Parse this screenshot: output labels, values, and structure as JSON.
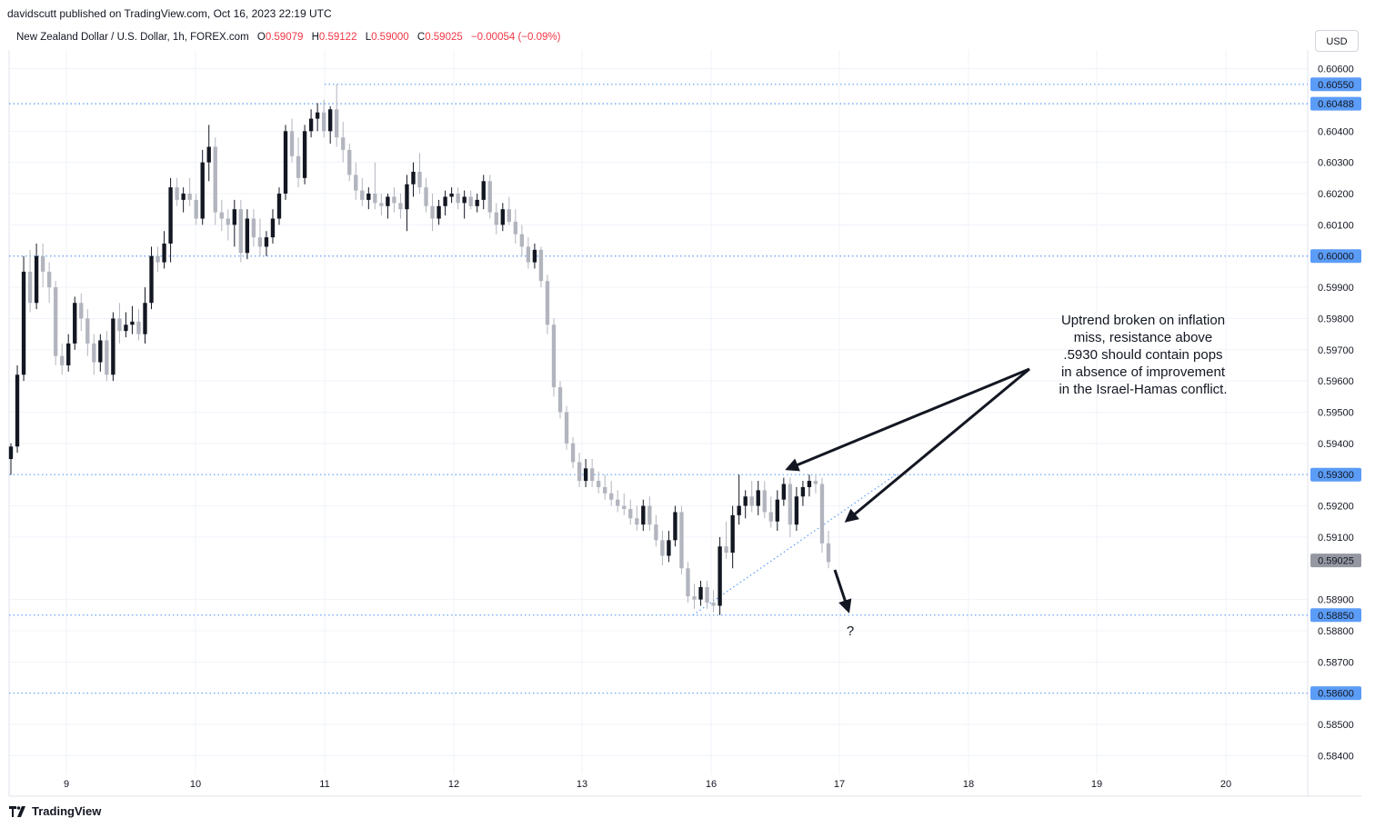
{
  "header": {
    "published": "davidscutt published on TradingView.com, Oct 16, 2023 22:19 UTC",
    "symbol": "New Zealand Dollar / U.S. Dollar, 1h, FOREX.com",
    "open_label": "O",
    "open": "0.59079",
    "high_label": "H",
    "high": "0.59122",
    "low_label": "L",
    "low": "0.59000",
    "close_label": "C",
    "close": "0.59025",
    "change": "−0.00054 (−0.09%)"
  },
  "currency_button": "USD",
  "brand": "TradingView",
  "chart_data": {
    "type": "candlestick",
    "title": "New Zealand Dollar / U.S. Dollar, 1h, FOREX.com",
    "y_axis_ticks": [
      "0.60600",
      "0.60400",
      "0.60300",
      "0.60200",
      "0.60100",
      "0.59900",
      "0.59800",
      "0.59700",
      "0.59600",
      "0.59500",
      "0.59400",
      "0.59200",
      "0.59100",
      "0.58900",
      "0.58800",
      "0.58700",
      "0.58500",
      "0.58400"
    ],
    "x_axis_ticks": [
      "9",
      "10",
      "11",
      "12",
      "13",
      "16",
      "17",
      "18",
      "19",
      "20"
    ],
    "ylim": [
      0.5834,
      0.6066
    ],
    "horizontal_levels": [
      {
        "label": "0.60550",
        "value": 0.6055,
        "color": "#2962ff"
      },
      {
        "label": "0.60488",
        "value": 0.60488,
        "color": "#2962ff"
      },
      {
        "label": "0.60000",
        "value": 0.6,
        "color": "#2962ff"
      },
      {
        "label": "0.59300",
        "value": 0.593,
        "color": "#2962ff"
      },
      {
        "label": "0.58850",
        "value": 0.5885,
        "color": "#2962ff"
      },
      {
        "label": "0.58600",
        "value": 0.586,
        "color": "#2962ff"
      }
    ],
    "last_price": {
      "label": "0.59025",
      "value": 0.59025
    },
    "annotation_text": [
      "Uptrend broken on inflation",
      "miss, resistance above",
      ".5930 should contain pops",
      "in absence of improvement",
      "in the Israel-Hamas conflict."
    ],
    "question_mark": "?",
    "candles": [
      [
        0.5935,
        0.594,
        0.593,
        0.5939
      ],
      [
        0.5939,
        0.5965,
        0.5937,
        0.5962
      ],
      [
        0.5962,
        0.6,
        0.596,
        0.5995
      ],
      [
        0.5995,
        0.6002,
        0.5982,
        0.5985
      ],
      [
        0.5985,
        0.6004,
        0.5983,
        0.6
      ],
      [
        0.6,
        0.6004,
        0.599,
        0.5995
      ],
      [
        0.5995,
        0.5998,
        0.5985,
        0.599
      ],
      [
        0.599,
        0.5992,
        0.5965,
        0.5968
      ],
      [
        0.5968,
        0.5972,
        0.5962,
        0.5965
      ],
      [
        0.5965,
        0.5975,
        0.5963,
        0.5972
      ],
      [
        0.5972,
        0.5987,
        0.597,
        0.5985
      ],
      [
        0.5985,
        0.5988,
        0.5976,
        0.598
      ],
      [
        0.598,
        0.5983,
        0.5968,
        0.5972
      ],
      [
        0.5972,
        0.5975,
        0.5962,
        0.5966
      ],
      [
        0.5966,
        0.5975,
        0.5963,
        0.5973
      ],
      [
        0.5973,
        0.5976,
        0.596,
        0.5962
      ],
      [
        0.5962,
        0.5982,
        0.596,
        0.598
      ],
      [
        0.598,
        0.5985,
        0.5972,
        0.5976
      ],
      [
        0.5976,
        0.5982,
        0.5974,
        0.5978
      ],
      [
        0.5978,
        0.5984,
        0.5975,
        0.5979
      ],
      [
        0.5979,
        0.5983,
        0.5973,
        0.5975
      ],
      [
        0.5975,
        0.599,
        0.5972,
        0.5985
      ],
      [
        0.5985,
        0.6003,
        0.5983,
        0.6
      ],
      [
        0.6,
        0.6003,
        0.5995,
        0.5998
      ],
      [
        0.5998,
        0.6008,
        0.5996,
        0.6004
      ],
      [
        0.6004,
        0.6025,
        0.5998,
        0.6022
      ],
      [
        0.6022,
        0.6025,
        0.6016,
        0.6018
      ],
      [
        0.6018,
        0.6022,
        0.6014,
        0.602
      ],
      [
        0.602,
        0.6025,
        0.6016,
        0.6018
      ],
      [
        0.6018,
        0.602,
        0.601,
        0.6012
      ],
      [
        0.6012,
        0.6034,
        0.601,
        0.603
      ],
      [
        0.603,
        0.6042,
        0.6024,
        0.6035
      ],
      [
        0.6035,
        0.6038,
        0.601,
        0.6014
      ],
      [
        0.6014,
        0.6018,
        0.6008,
        0.6012
      ],
      [
        0.6012,
        0.6015,
        0.6005,
        0.601
      ],
      [
        0.601,
        0.6018,
        0.6003,
        0.6015
      ],
      [
        0.6015,
        0.6018,
        0.5998,
        0.6001
      ],
      [
        0.6001,
        0.6015,
        0.5999,
        0.6012
      ],
      [
        0.6012,
        0.6015,
        0.6003,
        0.6006
      ],
      [
        0.6006,
        0.6012,
        0.6,
        0.6003
      ],
      [
        0.6003,
        0.6008,
        0.6,
        0.6006
      ],
      [
        0.6006,
        0.6015,
        0.6004,
        0.6012
      ],
      [
        0.6012,
        0.6022,
        0.601,
        0.602
      ],
      [
        0.602,
        0.6042,
        0.6018,
        0.604
      ],
      [
        0.604,
        0.6044,
        0.603,
        0.6032
      ],
      [
        0.6032,
        0.6038,
        0.6022,
        0.6025
      ],
      [
        0.6025,
        0.6042,
        0.6023,
        0.604
      ],
      [
        0.604,
        0.6047,
        0.6038,
        0.6044
      ],
      [
        0.6044,
        0.6049,
        0.604,
        0.6046
      ],
      [
        0.6046,
        0.605,
        0.6038,
        0.604
      ],
      [
        0.604,
        0.6048,
        0.6036,
        0.6047
      ],
      [
        0.6047,
        0.6055,
        0.6035,
        0.6038
      ],
      [
        0.6038,
        0.6043,
        0.603,
        0.6034
      ],
      [
        0.6034,
        0.6036,
        0.6024,
        0.6026
      ],
      [
        0.6026,
        0.603,
        0.6018,
        0.6021
      ],
      [
        0.6021,
        0.6025,
        0.6016,
        0.6018
      ],
      [
        0.6018,
        0.6022,
        0.6015,
        0.602
      ],
      [
        0.602,
        0.603,
        0.6015,
        0.6017
      ],
      [
        0.6017,
        0.602,
        0.6013,
        0.6016
      ],
      [
        0.6016,
        0.602,
        0.6012,
        0.6019
      ],
      [
        0.6019,
        0.6022,
        0.6014,
        0.6017
      ],
      [
        0.6017,
        0.602,
        0.6012,
        0.6015
      ],
      [
        0.6015,
        0.6026,
        0.6008,
        0.6023
      ],
      [
        0.6023,
        0.603,
        0.6019,
        0.6027
      ],
      [
        0.6027,
        0.6033,
        0.602,
        0.6022
      ],
      [
        0.6022,
        0.6025,
        0.6014,
        0.6016
      ],
      [
        0.6016,
        0.602,
        0.6008,
        0.6012
      ],
      [
        0.6012,
        0.6018,
        0.601,
        0.6016
      ],
      [
        0.6016,
        0.6021,
        0.6013,
        0.6019
      ],
      [
        0.6019,
        0.6022,
        0.6017,
        0.602
      ],
      [
        0.602,
        0.6022,
        0.6015,
        0.6017
      ],
      [
        0.6017,
        0.6021,
        0.6012,
        0.6019
      ],
      [
        0.6019,
        0.6021,
        0.6015,
        0.6016
      ],
      [
        0.6016,
        0.602,
        0.6014,
        0.6018
      ],
      [
        0.6018,
        0.6026,
        0.6015,
        0.6024
      ],
      [
        0.6024,
        0.6026,
        0.6012,
        0.6014
      ],
      [
        0.6014,
        0.6017,
        0.6007,
        0.601
      ],
      [
        0.601,
        0.6017,
        0.6008,
        0.6015
      ],
      [
        0.6015,
        0.6019,
        0.601,
        0.6011
      ],
      [
        0.6011,
        0.6015,
        0.6004,
        0.6007
      ],
      [
        0.6007,
        0.601,
        0.6,
        0.6003
      ],
      [
        0.6003,
        0.6006,
        0.5996,
        0.5998
      ],
      [
        0.5998,
        0.6004,
        0.5996,
        0.6002
      ],
      [
        0.6002,
        0.6003,
        0.599,
        0.5992
      ],
      [
        0.5992,
        0.5994,
        0.5975,
        0.5978
      ],
      [
        0.5978,
        0.598,
        0.5955,
        0.5958
      ],
      [
        0.5958,
        0.596,
        0.5948,
        0.595
      ],
      [
        0.595,
        0.5952,
        0.5938,
        0.594
      ],
      [
        0.594,
        0.5942,
        0.5932,
        0.5934
      ],
      [
        0.5934,
        0.5937,
        0.5926,
        0.5928
      ],
      [
        0.5928,
        0.5935,
        0.5926,
        0.5932
      ],
      [
        0.5932,
        0.5935,
        0.5926,
        0.5928
      ],
      [
        0.5928,
        0.5931,
        0.5924,
        0.5926
      ],
      [
        0.5926,
        0.593,
        0.5922,
        0.5924
      ],
      [
        0.5924,
        0.5928,
        0.592,
        0.5922
      ],
      [
        0.5922,
        0.5925,
        0.5918,
        0.592
      ],
      [
        0.592,
        0.5924,
        0.5917,
        0.5919
      ],
      [
        0.5919,
        0.5922,
        0.5914,
        0.5916
      ],
      [
        0.5916,
        0.592,
        0.5912,
        0.5914
      ],
      [
        0.5914,
        0.5922,
        0.5912,
        0.592
      ],
      [
        0.592,
        0.5923,
        0.5912,
        0.5914
      ],
      [
        0.5914,
        0.5917,
        0.5907,
        0.5909
      ],
      [
        0.5909,
        0.5912,
        0.5901,
        0.5904
      ],
      [
        0.5904,
        0.5912,
        0.5902,
        0.5909
      ],
      [
        0.5909,
        0.592,
        0.5907,
        0.5918
      ],
      [
        0.5918,
        0.592,
        0.5898,
        0.59
      ],
      [
        0.59,
        0.5902,
        0.5889,
        0.5891
      ],
      [
        0.5891,
        0.5895,
        0.5887,
        0.589
      ],
      [
        0.589,
        0.5896,
        0.5888,
        0.5894
      ],
      [
        0.5894,
        0.5896,
        0.5887,
        0.5889
      ],
      [
        0.5889,
        0.5893,
        0.5886,
        0.5888
      ],
      [
        0.5888,
        0.591,
        0.5885,
        0.5907
      ],
      [
        0.5907,
        0.5915,
        0.5903,
        0.5905
      ],
      [
        0.5905,
        0.592,
        0.59,
        0.5917
      ],
      [
        0.5917,
        0.593,
        0.5914,
        0.592
      ],
      [
        0.592,
        0.5925,
        0.5916,
        0.5923
      ],
      [
        0.5923,
        0.5928,
        0.5918,
        0.592
      ],
      [
        0.592,
        0.5928,
        0.5917,
        0.5925
      ],
      [
        0.5925,
        0.5928,
        0.5916,
        0.5918
      ],
      [
        0.5918,
        0.5923,
        0.5913,
        0.5915
      ],
      [
        0.5915,
        0.5925,
        0.5912,
        0.5922
      ],
      [
        0.5922,
        0.5929,
        0.592,
        0.5927
      ],
      [
        0.5927,
        0.5929,
        0.591,
        0.5914
      ],
      [
        0.5914,
        0.5926,
        0.5912,
        0.5923
      ],
      [
        0.5923,
        0.5928,
        0.592,
        0.5926
      ],
      [
        0.5926,
        0.593,
        0.5923,
        0.5928
      ],
      [
        0.5928,
        0.593,
        0.5924,
        0.5927
      ],
      [
        0.5927,
        0.5929,
        0.5905,
        0.5908
      ],
      [
        0.5908,
        0.5912,
        0.59,
        0.5902
      ]
    ]
  }
}
